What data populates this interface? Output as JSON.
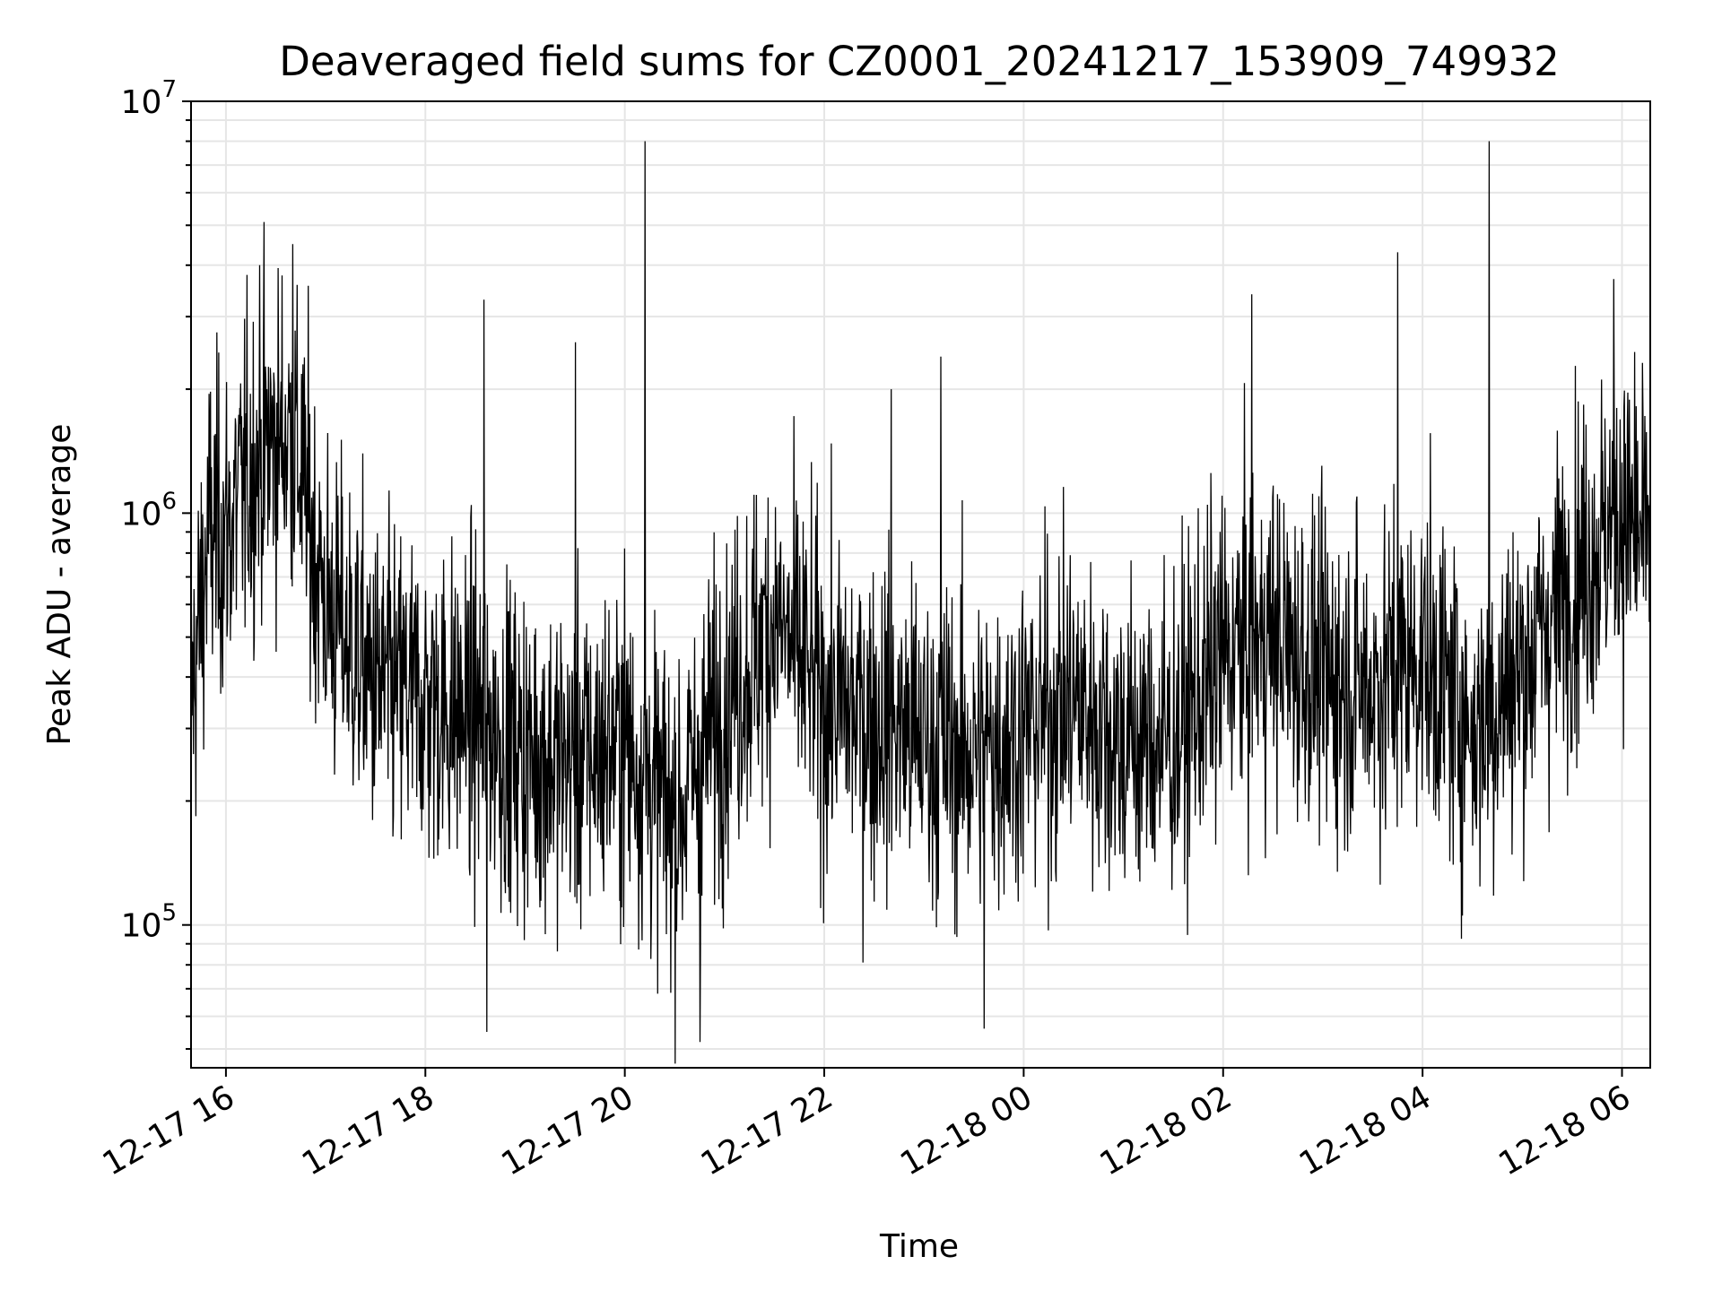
{
  "chart_data": {
    "type": "line",
    "title": "Deaveraged field sums for CZ0001_20241217_153909_749932",
    "xlabel": "Time",
    "ylabel": "Peak ADU - average",
    "x_range": [
      "2024-12-17 15:39",
      "2024-12-18 06:17"
    ],
    "ylim": [
      45000,
      10000000
    ],
    "y_scale": "log",
    "grid": true,
    "line_color": "#000000",
    "grid_color": "#e6e6e6",
    "x_ticks": [
      {
        "value": "2024-12-17 16:00",
        "label": "12-17 16"
      },
      {
        "value": "2024-12-17 18:00",
        "label": "12-17 18"
      },
      {
        "value": "2024-12-17 20:00",
        "label": "12-17 20"
      },
      {
        "value": "2024-12-17 22:00",
        "label": "12-17 22"
      },
      {
        "value": "2024-12-18 00:00",
        "label": "12-18 00"
      },
      {
        "value": "2024-12-18 02:00",
        "label": "12-18 02"
      },
      {
        "value": "2024-12-18 04:00",
        "label": "12-18 04"
      },
      {
        "value": "2024-12-18 06:00",
        "label": "12-18 06"
      }
    ],
    "y_ticks": [
      {
        "value": 100000,
        "base": "10",
        "exp": "5"
      },
      {
        "value": 1000000,
        "base": "10",
        "exp": "6"
      },
      {
        "value": 10000000,
        "base": "10",
        "exp": "7"
      }
    ],
    "series": [
      {
        "x": [
          "2024-12-17 15:39",
          "2024-12-17 15:50",
          "2024-12-17 16:00",
          "2024-12-17 16:20",
          "2024-12-17 16:40",
          "2024-12-17 17:00",
          "2024-12-17 17:30",
          "2024-12-17 18:00",
          "2024-12-17 18:30",
          "2024-12-17 19:00",
          "2024-12-17 19:30",
          "2024-12-17 20:00",
          "2024-12-17 20:30",
          "2024-12-17 21:00",
          "2024-12-17 21:30",
          "2024-12-17 22:00",
          "2024-12-17 22:30",
          "2024-12-17 23:00",
          "2024-12-17 23:30",
          "2024-12-18 00:00",
          "2024-12-18 00:30",
          "2024-12-18 01:00",
          "2024-12-18 01:30",
          "2024-12-18 02:00",
          "2024-12-18 02:30",
          "2024-12-18 03:00",
          "2024-12-18 03:30",
          "2024-12-18 04:00",
          "2024-12-18 04:30",
          "2024-12-18 05:00",
          "2024-12-18 05:30",
          "2024-12-18 06:00",
          "2024-12-18 06:17"
        ],
        "y": [
          350000,
          900000,
          900000,
          1400000,
          1600000,
          600000,
          380000,
          350000,
          320000,
          260000,
          250000,
          280000,
          180000,
          350000,
          550000,
          350000,
          320000,
          280000,
          260000,
          300000,
          350000,
          280000,
          280000,
          450000,
          500000,
          400000,
          380000,
          450000,
          300000,
          420000,
          700000,
          1000000,
          800000
        ]
      }
    ],
    "spikes": [
      {
        "x": "2024-12-17 16:20",
        "y": 4000000
      },
      {
        "x": "2024-12-17 16:40",
        "y": 4500000
      },
      {
        "x": "2024-12-17 18:35",
        "y": 3300000
      },
      {
        "x": "2024-12-17 19:30",
        "y": 2600000
      },
      {
        "x": "2024-12-17 20:12",
        "y": 8000000
      },
      {
        "x": "2024-12-17 22:40",
        "y": 2000000
      },
      {
        "x": "2024-12-17 23:10",
        "y": 2400000
      },
      {
        "x": "2024-12-18 02:17",
        "y": 3400000
      },
      {
        "x": "2024-12-18 03:45",
        "y": 4300000
      },
      {
        "x": "2024-12-18 04:40",
        "y": 8000000
      },
      {
        "x": "2024-12-18 05:55",
        "y": 3700000
      },
      {
        "x": "2024-12-17 18:37",
        "y": 55000
      },
      {
        "x": "2024-12-17 20:45",
        "y": 52000
      },
      {
        "x": "2024-12-17 23:36",
        "y": 56000
      }
    ]
  }
}
